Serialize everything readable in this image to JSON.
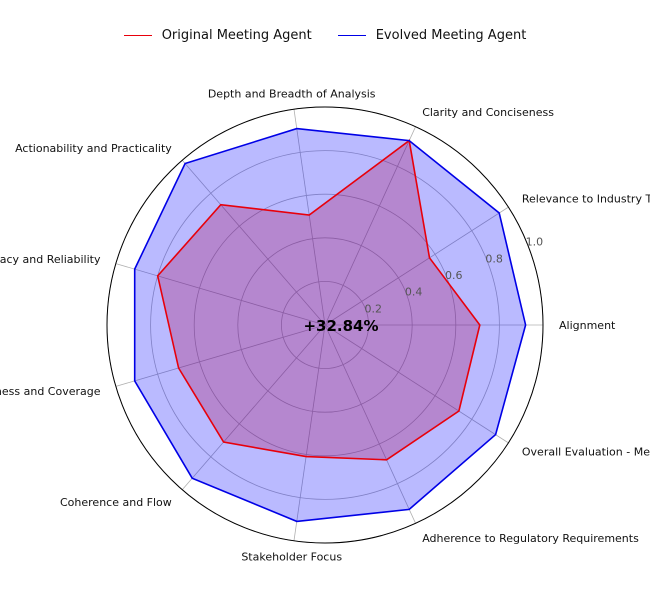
{
  "chart_data": {
    "type": "radar",
    "title": "",
    "center_label": "+32.84%",
    "radial_ticks": [
      "0.2",
      "0.4",
      "0.6",
      "0.8",
      "1.0"
    ],
    "radial_tick_values": [
      0.2,
      0.4,
      0.6,
      0.8,
      1.0
    ],
    "rlim": [
      0,
      1.0
    ],
    "grid": true,
    "legend_position": "top-center",
    "categories": [
      "Alignment",
      "Relevance to Industry Trends",
      "Clarity and Conciseness",
      "Depth and Breadth of Analysis",
      "Actionability and Practicality",
      "Accuracy and Reliability",
      "Completeness and Coverage",
      "Coherence and Flow",
      "Stakeholder Focus",
      "Adherence to Regulatory Requirements",
      "Overall Evaluation - Mean Score"
    ],
    "series": [
      {
        "name": "Original Meeting Agent",
        "color": "#e8000b",
        "fill": "#e8000b",
        "values": [
          0.71,
          0.57,
          0.93,
          0.51,
          0.73,
          0.8,
          0.7,
          0.71,
          0.61,
          0.68,
          0.73
        ]
      },
      {
        "name": "Evolved Meeting Agent",
        "color": "#0000e6",
        "fill": "#0000ff",
        "values": [
          0.92,
          0.95,
          0.93,
          0.91,
          0.98,
          0.91,
          0.91,
          0.93,
          0.91,
          0.93,
          0.93
        ]
      }
    ]
  }
}
